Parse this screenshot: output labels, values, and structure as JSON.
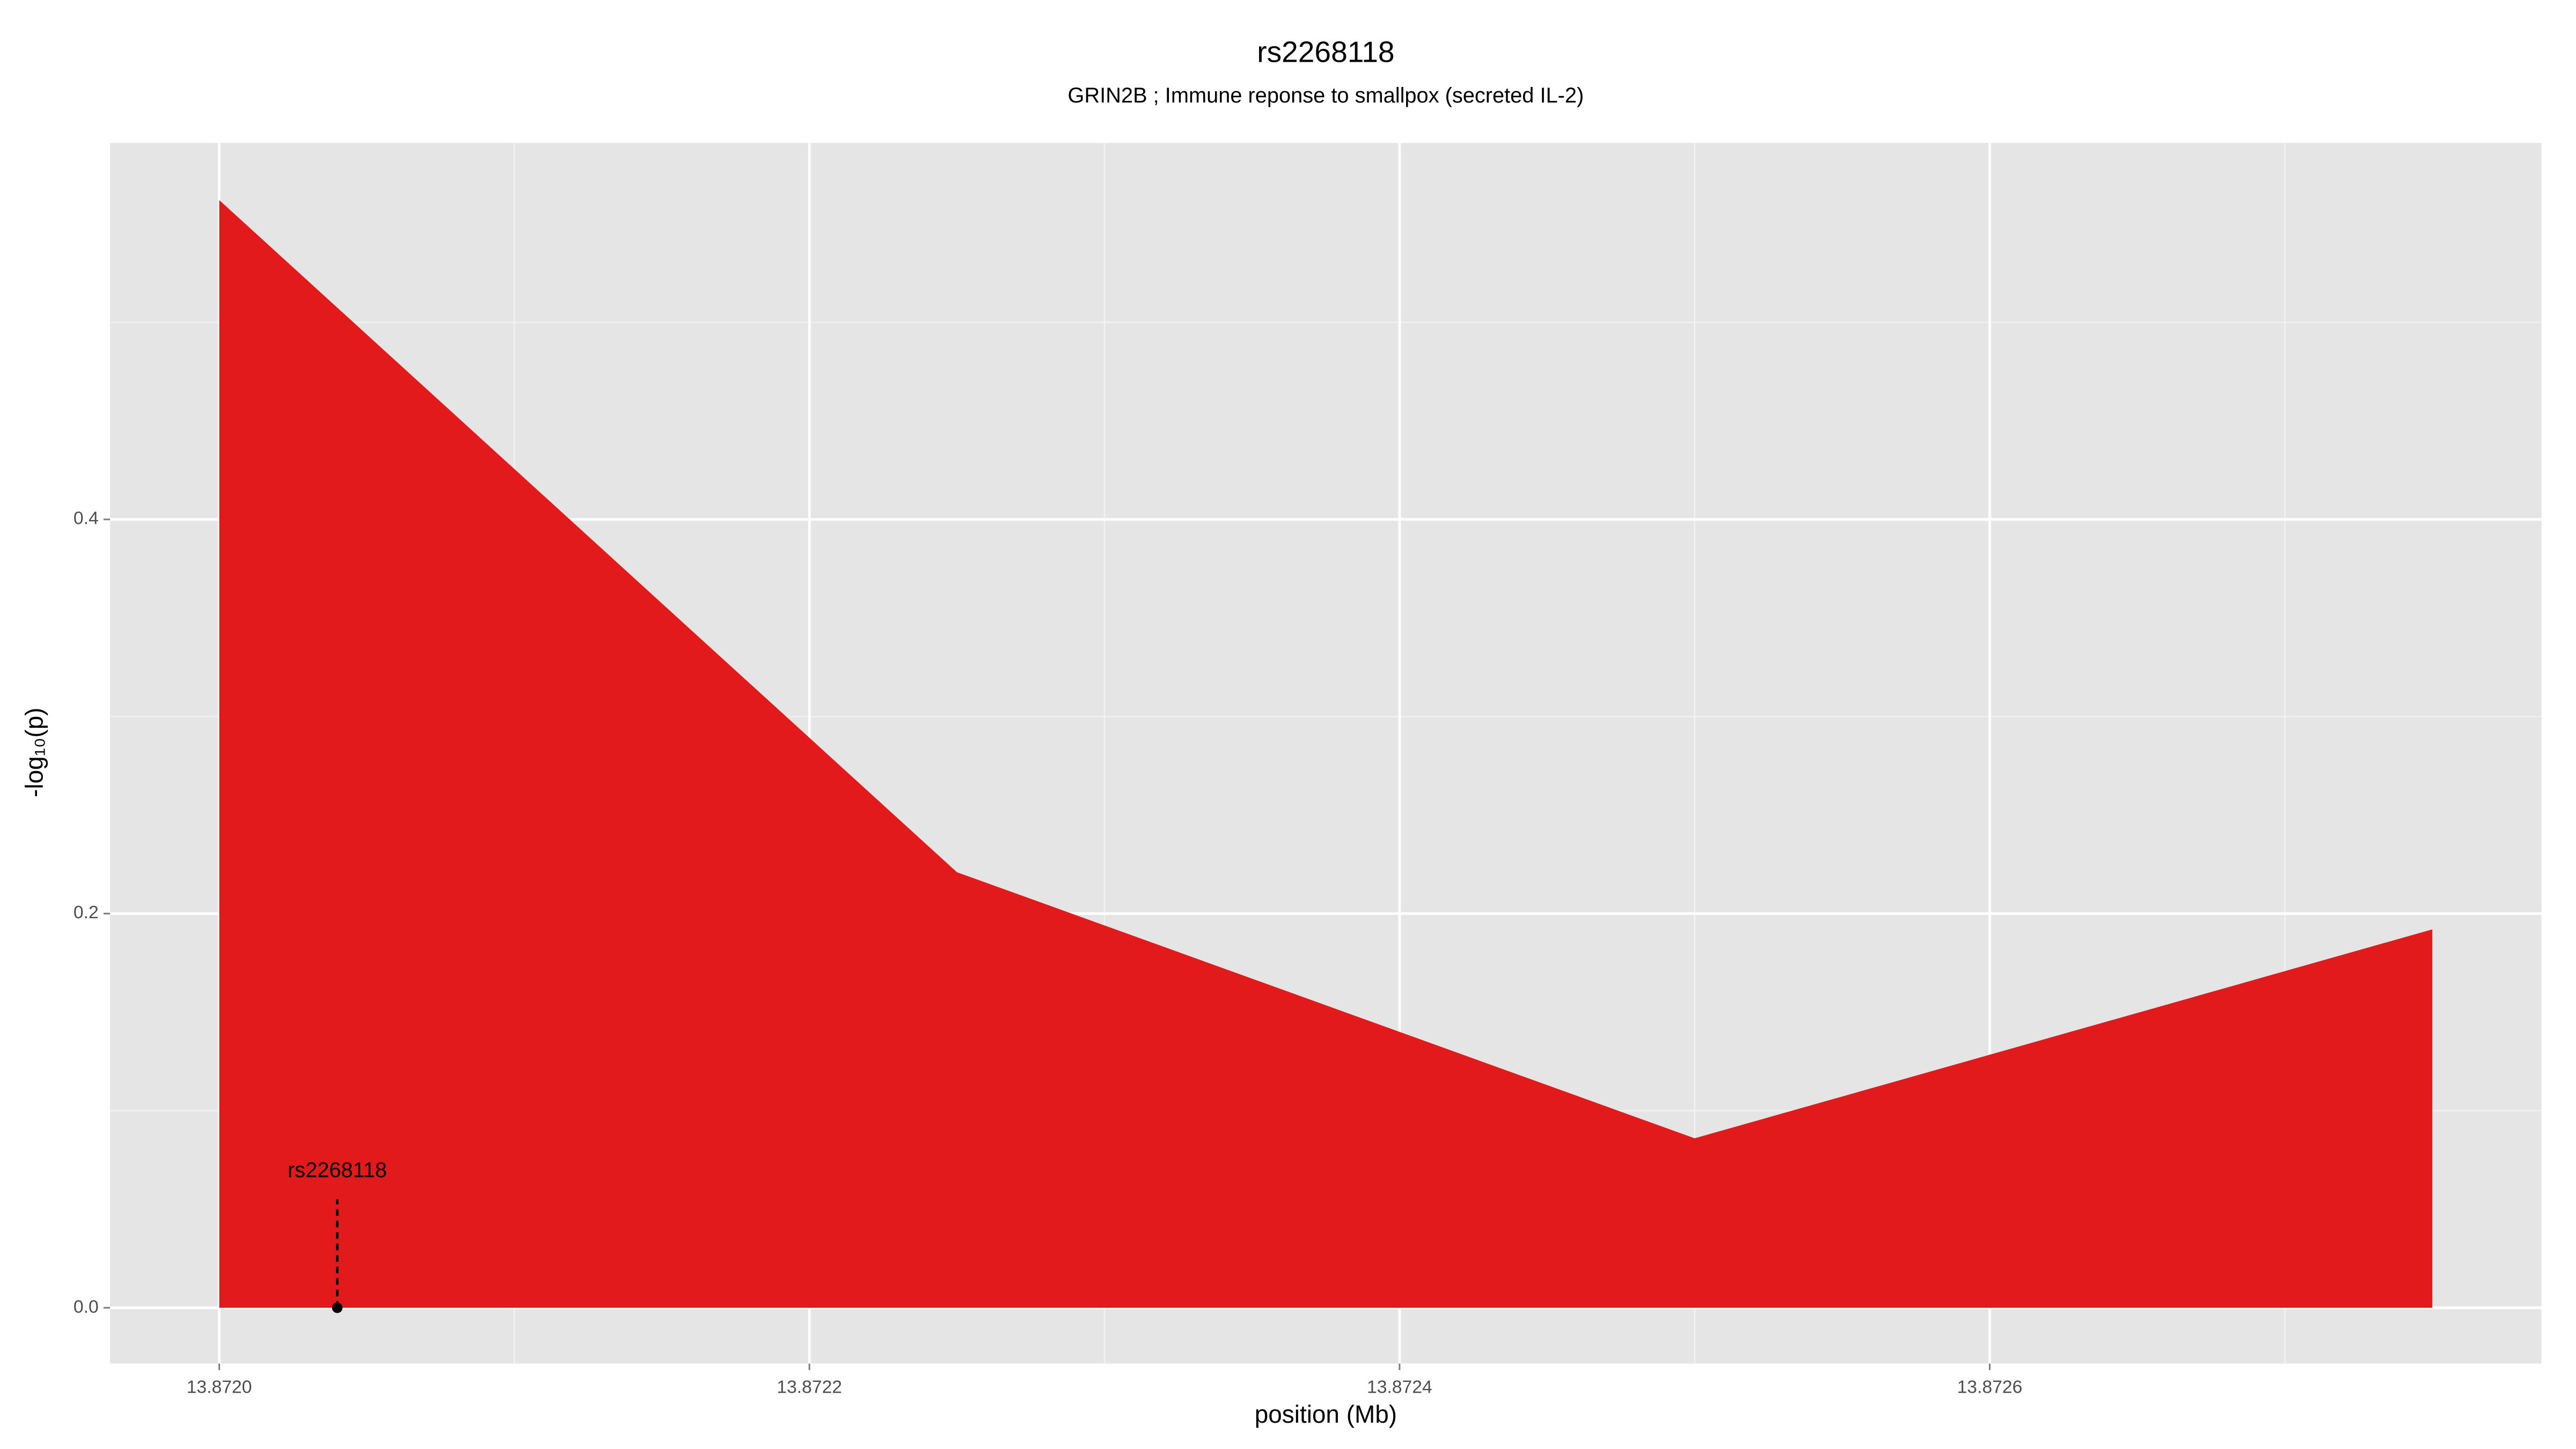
{
  "chart_data": {
    "type": "area",
    "title": "rs2268118",
    "subtitle": "GRIN2B ; Immune reponse to smallpox (secreted IL-2)",
    "x_label": "position (Mb)",
    "y_label": "-log₁₀(p)",
    "x": [
      13.872,
      13.87225,
      13.8725,
      13.87275
    ],
    "values": [
      0.562,
      0.221,
      0.086,
      0.192
    ],
    "color": "#e31a1c",
    "xlim": [
      13.871963,
      13.872787
    ],
    "ylim": [
      -0.0283,
      0.591
    ],
    "xticks": [
      {
        "value": 13.872,
        "label": "13.8720"
      },
      {
        "value": 13.8722,
        "label": "13.8722"
      },
      {
        "value": 13.8724,
        "label": "13.8724"
      },
      {
        "value": 13.8726,
        "label": "13.8726"
      }
    ],
    "yticks": [
      {
        "value": 0,
        "label": "0.0"
      },
      0.2,
      0.4
    ],
    "grid": true,
    "annotation": {
      "label": "rs2268118",
      "x": 13.87204,
      "y": 0,
      "line_top": 0.055
    }
  }
}
